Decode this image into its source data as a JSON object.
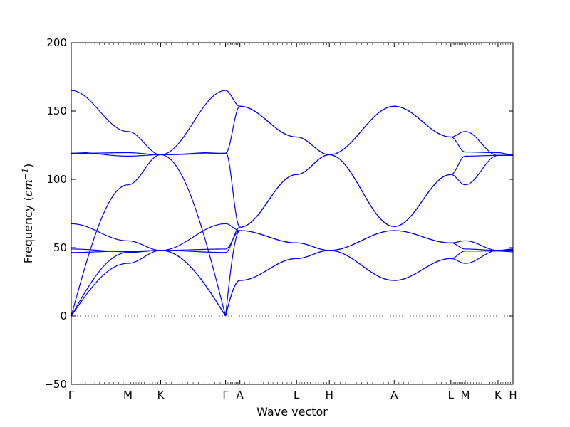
{
  "chart_data": {
    "type": "line",
    "title": "",
    "xlabel": "Wave vector",
    "ylabel_prefix": "Frequency (",
    "ylabel_unit": "cm",
    "ylabel_exp": "−1",
    "ylabel_suffix": ")",
    "ylim": [
      -50,
      200
    ],
    "yticks": [
      -50,
      0,
      50,
      100,
      150,
      200
    ],
    "ytick_labels": [
      "−50",
      "0",
      "50",
      "100",
      "150",
      "200"
    ],
    "grid": false,
    "legend": "none",
    "line_color": "#0000ff",
    "zero_line_color": "#555555",
    "xlim": [
      0,
      6.47
    ],
    "high_symmetry_points": [
      {
        "label": "Γ",
        "x": 0.0
      },
      {
        "label": "M",
        "x": 0.83
      },
      {
        "label": "K",
        "x": 1.31
      },
      {
        "label": "Γ",
        "x": 2.26
      },
      {
        "label": "A",
        "x": 2.47
      },
      {
        "label": "L",
        "x": 3.3
      },
      {
        "label": "H",
        "x": 3.78
      },
      {
        "label": "A",
        "x": 4.73
      },
      {
        "label": "L",
        "x": 5.56
      },
      {
        "label": "M",
        "x": 5.77
      },
      {
        "label": "K",
        "x": 6.25
      },
      {
        "label": "H",
        "x": 6.47
      }
    ],
    "segments": [
      {
        "from": "Γ",
        "to": "M",
        "x": [
          0.0,
          0.83
        ],
        "bands": [
          [
            0,
            38.5
          ],
          [
            0,
            46.5
          ],
          [
            67.5,
            55
          ],
          [
            49,
            47
          ],
          [
            46.5,
            47.5
          ],
          [
            0,
            96
          ],
          [
            120,
            117
          ],
          [
            119,
            119.5
          ],
          [
            165,
            135
          ]
        ]
      },
      {
        "from": "M",
        "to": "K",
        "x": [
          0.83,
          1.31
        ],
        "bands": [
          [
            38.5,
            48
          ],
          [
            46.5,
            48
          ],
          [
            55,
            48
          ],
          [
            47,
            48
          ],
          [
            47.5,
            48
          ],
          [
            96,
            118
          ],
          [
            117,
            118
          ],
          [
            119.5,
            118
          ],
          [
            135,
            118
          ]
        ]
      },
      {
        "from": "K",
        "to": "Γ",
        "x": [
          1.31,
          2.26
        ],
        "bands": [
          [
            48,
            0
          ],
          [
            48,
            0
          ],
          [
            48,
            67.5
          ],
          [
            48,
            49
          ],
          [
            48,
            46.5
          ],
          [
            118,
            0
          ],
          [
            118,
            120
          ],
          [
            118,
            119
          ],
          [
            118,
            165
          ]
        ]
      },
      {
        "from": "Γ",
        "to": "A",
        "x": [
          2.26,
          2.47
        ],
        "bands": [
          [
            0,
            26
          ],
          [
            0,
            26
          ],
          [
            67.5,
            62.5
          ],
          [
            49,
            62.5
          ],
          [
            46.5,
            65
          ],
          [
            0,
            62.5
          ],
          [
            120,
            65
          ],
          [
            119,
            153.5
          ],
          [
            165,
            153.5
          ]
        ]
      },
      {
        "from": "A",
        "to": "L",
        "x": [
          2.47,
          3.3
        ],
        "bands": [
          [
            26,
            42
          ],
          [
            26,
            42
          ],
          [
            62.5,
            53.5
          ],
          [
            62.5,
            53.5
          ],
          [
            65,
            103.5
          ],
          [
            65,
            103.5
          ],
          [
            153.5,
            131
          ],
          [
            153.5,
            131
          ]
        ]
      },
      {
        "from": "L",
        "to": "H",
        "x": [
          3.3,
          3.78
        ],
        "bands": [
          [
            42,
            48
          ],
          [
            42,
            48
          ],
          [
            53.5,
            48
          ],
          [
            53.5,
            48
          ],
          [
            103.5,
            118
          ],
          [
            103.5,
            118
          ],
          [
            131,
            118
          ],
          [
            131,
            118
          ]
        ]
      },
      {
        "from": "H",
        "to": "A",
        "x": [
          3.78,
          4.73
        ],
        "bands": [
          [
            48,
            62.5
          ],
          [
            48,
            62.5
          ],
          [
            48,
            26
          ],
          [
            48,
            26
          ],
          [
            118,
            153.5
          ],
          [
            118,
            153.5
          ],
          [
            118,
            65.5
          ],
          [
            118,
            65.5
          ]
        ]
      },
      {
        "from": "A",
        "to": "L",
        "x": [
          4.73,
          5.56
        ],
        "bands": [
          [
            62.5,
            53.5
          ],
          [
            62.5,
            53.5
          ],
          [
            26,
            42
          ],
          [
            26,
            42
          ],
          [
            153.5,
            131
          ],
          [
            153.5,
            131
          ],
          [
            65.5,
            103.5
          ],
          [
            65.5,
            103.5
          ]
        ]
      },
      {
        "from": "L",
        "to": "M",
        "x": [
          5.56,
          5.77
        ],
        "bands": [
          [
            53.5,
            55
          ],
          [
            53.5,
            49
          ],
          [
            42,
            47.5
          ],
          [
            42,
            38.5
          ],
          [
            131,
            135
          ],
          [
            131,
            120
          ],
          [
            103.5,
            117
          ],
          [
            103.5,
            96
          ]
        ]
      },
      {
        "from": "M",
        "to": "K",
        "x": [
          5.77,
          6.25
        ],
        "bands": [
          [
            55,
            48
          ],
          [
            49,
            48
          ],
          [
            47.5,
            47.5
          ],
          [
            38.5,
            48
          ],
          [
            135,
            117.5
          ],
          [
            120,
            119.5
          ],
          [
            117,
            117.5
          ],
          [
            96,
            117.5
          ]
        ]
      },
      {
        "from": "K",
        "to": "H",
        "x": [
          6.25,
          6.47
        ],
        "bands": [
          [
            48,
            49
          ],
          [
            48,
            48
          ],
          [
            47.5,
            47
          ],
          [
            48,
            48.5
          ],
          [
            117.5,
            118
          ],
          [
            119.5,
            118
          ],
          [
            117.5,
            117.5
          ],
          [
            117.5,
            118
          ]
        ]
      }
    ]
  }
}
